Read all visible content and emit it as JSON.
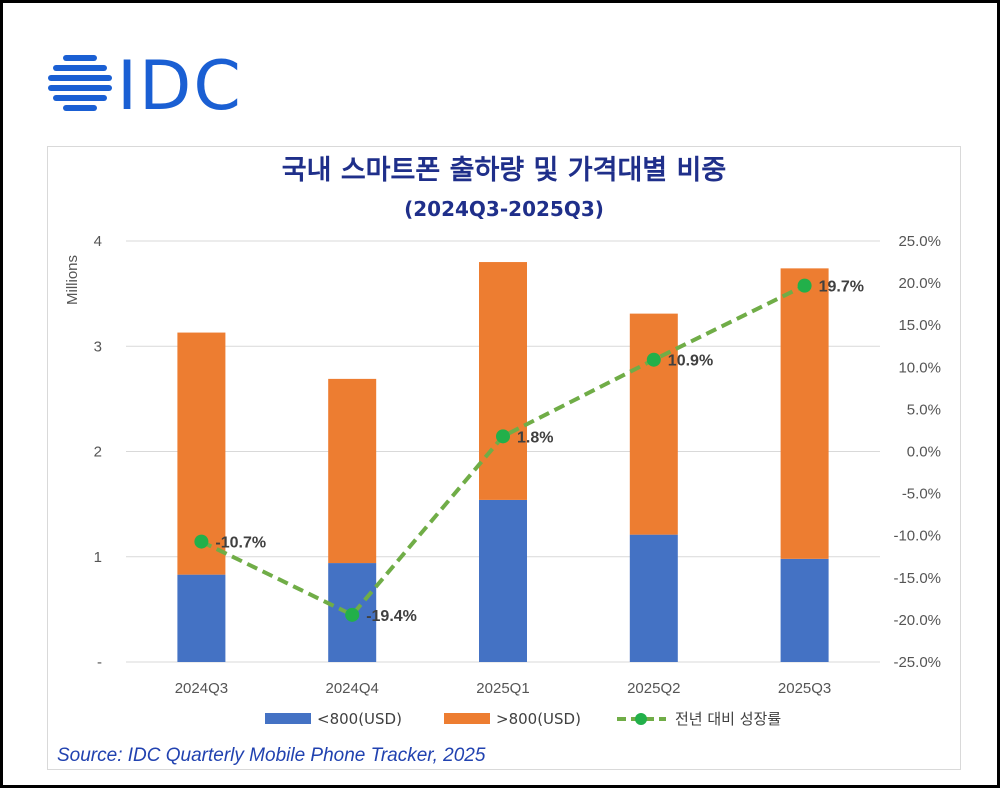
{
  "logo": {
    "text": "IDC",
    "color": "#1a5fd3"
  },
  "source": "Source: IDC Quarterly Mobile Phone Tracker, 2025",
  "chart_data": {
    "type": "bar",
    "stacked": true,
    "title": "국내 스마트폰 출하량 및 가격대별 비중",
    "subtitle": "(2024Q3-2025Q3)",
    "ylabel": "Millions",
    "ylim": [
      0,
      4
    ],
    "y_ticks": [
      "-",
      "1",
      "2",
      "3",
      "4"
    ],
    "y2lim": [
      -25,
      25
    ],
    "y2_ticks": [
      "-25.0%",
      "-20.0%",
      "-15.0%",
      "-10.0%",
      "-5.0%",
      "0.0%",
      "5.0%",
      "10.0%",
      "15.0%",
      "20.0%",
      "25.0%"
    ],
    "categories": [
      "2024Q3",
      "2024Q4",
      "2025Q1",
      "2025Q2",
      "2025Q3"
    ],
    "series": [
      {
        "name": "<800(USD)",
        "type": "bar",
        "color": "#4472c4",
        "values": [
          0.83,
          0.94,
          1.54,
          1.21,
          0.98
        ]
      },
      {
        "name": ">800(USD)",
        "type": "bar",
        "color": "#ed7d31",
        "values": [
          2.3,
          1.75,
          2.26,
          2.1,
          2.76
        ]
      },
      {
        "name": "전년 대비 성장률",
        "type": "line",
        "axis": "secondary",
        "color": "#70ad47",
        "marker_color": "#22b04a",
        "values": [
          -10.7,
          -19.4,
          1.8,
          10.9,
          19.7
        ],
        "labels": [
          "-10.7%",
          "-19.4%",
          "1.8%",
          "10.9%",
          "19.7%"
        ]
      }
    ],
    "grid": true,
    "legend_position": "bottom"
  }
}
